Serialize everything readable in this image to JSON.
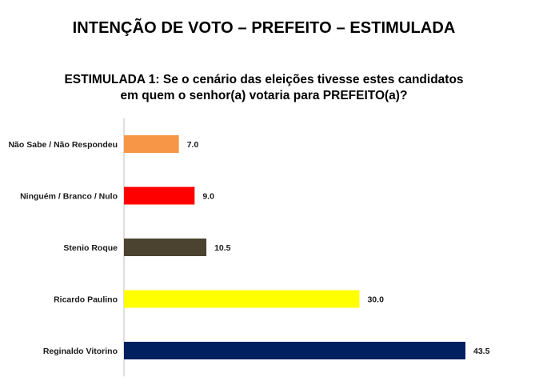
{
  "page_title": "INTENÇÃO DE VOTO – PREFEITO – ESTIMULADA",
  "question": {
    "line1": "ESTIMULADA 1: Se o cenário das eleições tivesse estes candidatos",
    "line2": "em quem o senhor(a) votaria para PREFEITO(a)?"
  },
  "chart_data": {
    "type": "bar",
    "orientation": "horizontal",
    "categories": [
      "Não Sabe / Não Respondeu",
      "Ninguém / Branco / Nulo",
      "Stenio Roque",
      "Ricardo Paulino",
      "Reginaldo Vitorino"
    ],
    "values": [
      7.0,
      9.0,
      10.5,
      30.0,
      43.5
    ],
    "value_labels": [
      "7.0",
      "9.0",
      "10.5",
      "30.0",
      "43.5"
    ],
    "colors": [
      "#F79646",
      "#FF0000",
      "#4B4230",
      "#FFFF00",
      "#002060"
    ],
    "xlim": [
      0,
      43.5
    ],
    "grid": false,
    "legend": "none",
    "title": "",
    "xlabel": "",
    "ylabel": ""
  }
}
